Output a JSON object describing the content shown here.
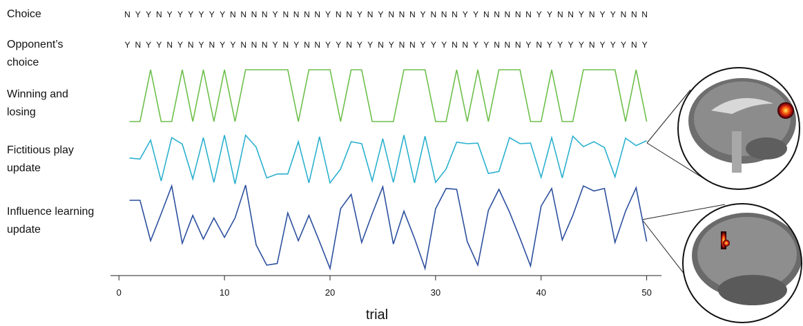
{
  "chart_data": {
    "type": "line",
    "xlabel": "trial",
    "xlim": [
      -0.8,
      51.4
    ],
    "xticks": [
      0,
      10,
      20,
      30,
      40,
      50
    ],
    "x": [
      1,
      2,
      3,
      4,
      5,
      6,
      7,
      8,
      9,
      10,
      11,
      12,
      13,
      14,
      15,
      16,
      17,
      18,
      19,
      20,
      21,
      22,
      23,
      24,
      25,
      26,
      27,
      28,
      29,
      30,
      31,
      32,
      33,
      34,
      35,
      36,
      37,
      38,
      39,
      40,
      41,
      42,
      43,
      44,
      45,
      46,
      47,
      48,
      49,
      50
    ],
    "text_rows": [
      {
        "name": "Choice",
        "letters": [
          "N",
          "Y",
          "Y",
          "N",
          "Y",
          "Y",
          "Y",
          "Y",
          "Y",
          "Y",
          "N",
          "N",
          "N",
          "N",
          "Y",
          "N",
          "N",
          "N",
          "N",
          "Y",
          "N",
          "N",
          "Y",
          "N",
          "Y",
          "N",
          "N",
          "N",
          "Y",
          "N",
          "N",
          "N",
          "Y",
          "Y",
          "N",
          "N",
          "N",
          "N",
          "N",
          "Y",
          "Y",
          "N",
          "N",
          "Y",
          "N",
          "Y",
          "Y",
          "N",
          "N",
          "N"
        ]
      },
      {
        "name": "Opponent’s choice",
        "letters": [
          "Y",
          "N",
          "Y",
          "Y",
          "N",
          "Y",
          "N",
          "Y",
          "N",
          "Y",
          "Y",
          "N",
          "N",
          "N",
          "Y",
          "N",
          "Y",
          "N",
          "N",
          "Y",
          "Y",
          "N",
          "Y",
          "Y",
          "N",
          "Y",
          "N",
          "N",
          "Y",
          "Y",
          "Y",
          "N",
          "N",
          "Y",
          "Y",
          "N",
          "N",
          "N",
          "Y",
          "N",
          "Y",
          "Y",
          "Y",
          "Y",
          "N",
          "Y",
          "Y",
          "Y",
          "N",
          "Y"
        ]
      }
    ],
    "series": [
      {
        "name": "Winning and losing",
        "color": "#6cbf4a",
        "ylim": [
          0,
          1
        ],
        "values": [
          0,
          0,
          1,
          0,
          0,
          1,
          0,
          1,
          0,
          1,
          0,
          1,
          1,
          1,
          1,
          1,
          0,
          1,
          1,
          1,
          0,
          1,
          1,
          0,
          0,
          0,
          1,
          1,
          1,
          0,
          0,
          1,
          0,
          1,
          0,
          1,
          1,
          1,
          0,
          0,
          1,
          0,
          0,
          1,
          1,
          1,
          1,
          0,
          1,
          0
        ]
      },
      {
        "name": "Fictitious play update",
        "color": "#2bb0cf",
        "ylim": [
          0,
          1
        ],
        "values": [
          0.53,
          0.51,
          0.89,
          0.07,
          0.94,
          0.81,
          0.11,
          0.94,
          0.04,
          0.99,
          0.01,
          0.99,
          0.75,
          0.13,
          0.21,
          0.21,
          0.86,
          0.03,
          0.96,
          0.03,
          0.31,
          0.86,
          0.82,
          0.07,
          0.92,
          0.04,
          0.99,
          0.03,
          0.97,
          0.04,
          0.31,
          0.85,
          0.82,
          0.83,
          0.22,
          0.26,
          0.94,
          0.82,
          0.83,
          0.14,
          0.94,
          0.13,
          0.97,
          0.76,
          0.86,
          0.74,
          0.15,
          0.93,
          0.78,
          0.88
        ]
      },
      {
        "name": "Influence learning update",
        "color": "#2c4f9e",
        "ylim": [
          0,
          1
        ],
        "values": [
          0.82,
          0.82,
          0.34,
          0.66,
          0.99,
          0.31,
          0.64,
          0.36,
          0.61,
          0.38,
          0.61,
          1.0,
          0.29,
          0.05,
          0.07,
          0.67,
          0.34,
          0.64,
          0.33,
          0.01,
          0.72,
          0.89,
          0.32,
          0.66,
          0.98,
          0.3,
          0.69,
          0.37,
          0.01,
          0.72,
          0.96,
          0.95,
          0.33,
          0.05,
          0.7,
          0.95,
          0.68,
          0.37,
          0.04,
          0.75,
          0.96,
          0.35,
          0.64,
          0.99,
          0.93,
          0.96,
          0.32,
          0.69,
          0.97,
          0.33
        ]
      }
    ]
  }
}
